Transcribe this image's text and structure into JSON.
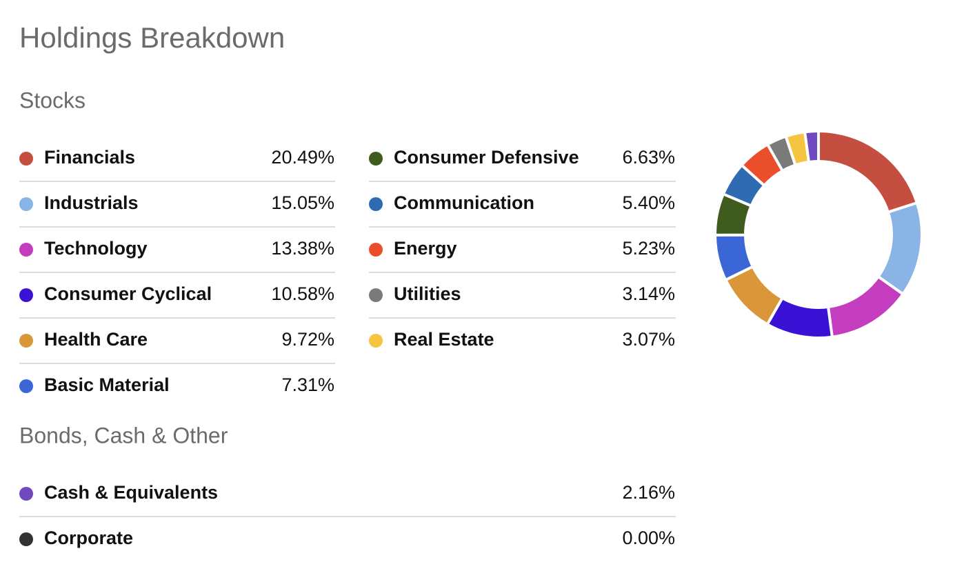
{
  "chart_data": {
    "type": "donut",
    "title": "Holdings Breakdown",
    "sections": [
      {
        "title": "Stocks",
        "categories": [
          "Financials",
          "Industrials",
          "Technology",
          "Consumer Cyclical",
          "Health Care",
          "Basic Material",
          "Consumer Defensive",
          "Communication",
          "Energy",
          "Utilities",
          "Real Estate"
        ],
        "values": [
          20.49,
          15.05,
          13.38,
          10.58,
          9.72,
          7.31,
          6.63,
          5.4,
          5.23,
          3.14,
          3.07
        ],
        "value_labels": [
          "20.49%",
          "15.05%",
          "13.38%",
          "10.58%",
          "9.72%",
          "7.31%",
          "6.63%",
          "5.40%",
          "5.23%",
          "3.14%",
          "3.07%"
        ],
        "colors": [
          "#c44e3f",
          "#8ab4e6",
          "#c43dbe",
          "#3a12d6",
          "#d9973a",
          "#3a66d6",
          "#3f5c1f",
          "#2f6bb0",
          "#ea4e2a",
          "#7a7a7a",
          "#f5c542"
        ]
      },
      {
        "title": "Bonds, Cash & Other",
        "categories": [
          "Cash & Equivalents",
          "Corporate"
        ],
        "values": [
          2.16,
          0
        ],
        "value_labels": [
          "2.16%",
          "0.00%"
        ],
        "colors": [
          "#7049c0",
          "#333333"
        ]
      }
    ]
  }
}
